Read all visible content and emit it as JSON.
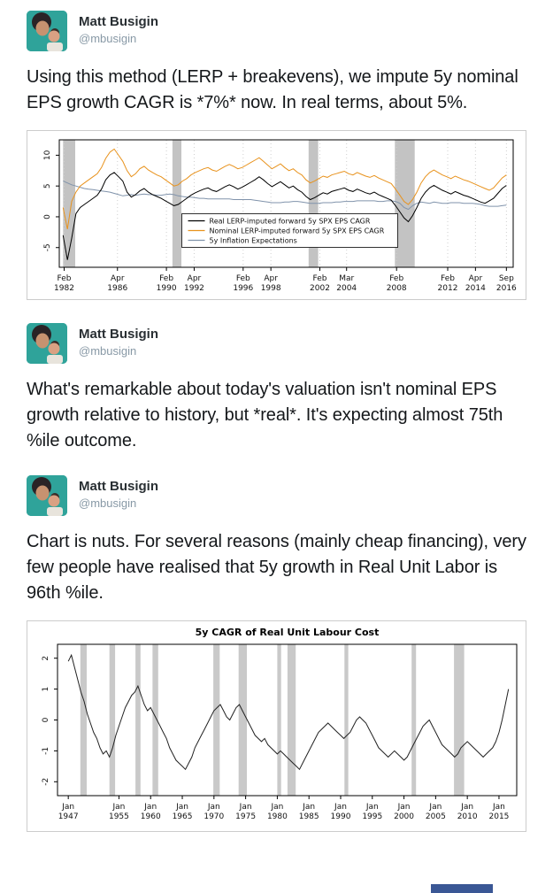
{
  "colors": {
    "text": "#14171a",
    "author_name": "#292f33",
    "handle": "#8899a6",
    "media_border": "#cccccc",
    "cropped_element_blue": "#3a5795"
  },
  "tweets": [
    {
      "author": "Matt Busigin",
      "handle": "@mbusigin",
      "text": "Using this method (LERP + breakevens), we impute 5y nominal EPS growth CAGR is *7%* now. In real terms, about 5%."
    },
    {
      "author": "Matt Busigin",
      "handle": "@mbusigin",
      "text": "What's remarkable about today's valuation isn't nominal EPS growth relative to history, but *real*. It's expecting almost 75th %ile outcome."
    },
    {
      "author": "Matt Busigin",
      "handle": "@mbusigin",
      "text": "Chart is nuts. For several reasons (mainly cheap financing), very few people have realised that 5y growth in Real Unit Labor is 96th %ile."
    }
  ],
  "chart_data": [
    {
      "type": "line",
      "title": "",
      "xlabel": "",
      "ylabel": "",
      "xlim": [
        1981.7,
        2017.2
      ],
      "ylim": [
        -8.2,
        12.5
      ],
      "yticks": [
        -5,
        0,
        5,
        10
      ],
      "xticks": [
        {
          "x": 1982.08,
          "month": "Feb",
          "year": "1982"
        },
        {
          "x": 1986.25,
          "month": "Apr",
          "year": "1986"
        },
        {
          "x": 1990.08,
          "month": "Feb",
          "year": "1990"
        },
        {
          "x": 1992.25,
          "month": "Apr",
          "year": "1992"
        },
        {
          "x": 1996.08,
          "month": "Feb",
          "year": "1996"
        },
        {
          "x": 1998.25,
          "month": "Apr",
          "year": "1998"
        },
        {
          "x": 2002.08,
          "month": "Feb",
          "year": "2002"
        },
        {
          "x": 2004.17,
          "month": "Mar",
          "year": "2004"
        },
        {
          "x": 2008.08,
          "month": "Feb",
          "year": "2008"
        },
        {
          "x": 2012.08,
          "month": "Feb",
          "year": "2012"
        },
        {
          "x": 2014.25,
          "month": "Apr",
          "year": "2014"
        },
        {
          "x": 2016.67,
          "month": "Sep",
          "year": "2016"
        }
      ],
      "grid": true,
      "recession_bands": [
        [
          1982.0,
          1982.95
        ],
        [
          1990.55,
          1991.25
        ],
        [
          2001.2,
          2001.95
        ],
        [
          2007.95,
          2009.5
        ]
      ],
      "band_color": "#c3c3c3",
      "legend": {
        "items": [
          {
            "label": "Real LERP-imputed forward 5y SPX EPS CAGR",
            "color": "#000000"
          },
          {
            "label": "Nominal LERP-imputed forward 5y SPX EPS CAGR",
            "color": "#e8921c"
          },
          {
            "label": "5y Inflation Expectations",
            "color": "#8093ab"
          }
        ]
      },
      "series": [
        {
          "name": "5y Inflation Expectations",
          "color": "#8093ab",
          "x0": 1982.0,
          "dx": 0.33333,
          "values": [
            5.8,
            5.5,
            5.2,
            5.0,
            4.8,
            4.6,
            4.5,
            4.4,
            4.3,
            4.2,
            4.1,
            4.0,
            3.8,
            3.6,
            3.4,
            3.5,
            3.6,
            3.5,
            3.6,
            3.7,
            3.6,
            3.6,
            3.5,
            3.5,
            3.6,
            3.7,
            3.6,
            3.4,
            3.3,
            3.2,
            3.2,
            3.1,
            3.0,
            3.0,
            2.9,
            2.9,
            2.9,
            2.9,
            2.9,
            2.9,
            2.8,
            2.8,
            2.8,
            2.8,
            2.8,
            2.7,
            2.6,
            2.5,
            2.4,
            2.3,
            2.3,
            2.3,
            2.4,
            2.4,
            2.5,
            2.5,
            2.4,
            2.3,
            2.2,
            2.2,
            2.2,
            2.3,
            2.3,
            2.3,
            2.4,
            2.4,
            2.5,
            2.5,
            2.5,
            2.6,
            2.6,
            2.6,
            2.6,
            2.6,
            2.5,
            2.5,
            2.6,
            2.6,
            2.5,
            2.2,
            1.5,
            1.2,
            1.8,
            2.2,
            2.4,
            2.3,
            2.2,
            2.4,
            2.3,
            2.2,
            2.2,
            2.3,
            2.3,
            2.3,
            2.2,
            2.2,
            2.2,
            2.1,
            2.0,
            1.8,
            1.7,
            1.7,
            1.7,
            1.8,
            1.9
          ]
        },
        {
          "name": "Nominal LERP-imputed forward 5y SPX EPS CAGR",
          "color": "#e8921c",
          "x0": 1982.0,
          "dx": 0.33333,
          "values": [
            1.5,
            -2.0,
            2.5,
            4.0,
            5.0,
            5.5,
            6.0,
            6.5,
            7.0,
            8.0,
            9.5,
            10.5,
            11.0,
            10.0,
            9.0,
            7.5,
            6.5,
            7.0,
            7.8,
            8.2,
            7.6,
            7.2,
            6.8,
            6.5,
            6.0,
            5.5,
            5.0,
            5.2,
            5.8,
            6.2,
            6.8,
            7.2,
            7.5,
            7.8,
            8.0,
            7.6,
            7.4,
            7.8,
            8.2,
            8.5,
            8.2,
            7.8,
            8.0,
            8.4,
            8.8,
            9.2,
            9.6,
            9.0,
            8.4,
            7.8,
            8.2,
            8.6,
            8.0,
            7.5,
            7.8,
            7.2,
            6.8,
            6.0,
            5.5,
            5.8,
            6.2,
            6.6,
            6.4,
            6.8,
            7.0,
            7.2,
            7.4,
            7.0,
            6.8,
            7.2,
            6.9,
            6.6,
            6.4,
            6.7,
            6.3,
            6.0,
            5.7,
            5.4,
            4.5,
            3.5,
            2.5,
            2.0,
            2.8,
            4.0,
            5.5,
            6.5,
            7.2,
            7.6,
            7.2,
            6.8,
            6.5,
            6.2,
            6.6,
            6.3,
            6.0,
            5.8,
            5.5,
            5.2,
            4.9,
            4.6,
            4.3,
            4.7,
            5.5,
            6.3,
            6.8
          ]
        },
        {
          "name": "Real LERP-imputed forward 5y SPX EPS CAGR",
          "color": "#000000",
          "x0": 1982.0,
          "dx": 0.33333,
          "values": [
            -3.0,
            -7.0,
            -3.5,
            0.5,
            1.5,
            2.0,
            2.5,
            3.0,
            3.5,
            4.5,
            6.0,
            6.8,
            7.2,
            6.5,
            5.8,
            4.0,
            3.2,
            3.6,
            4.2,
            4.6,
            4.0,
            3.6,
            3.3,
            3.0,
            2.6,
            2.2,
            1.8,
            2.0,
            2.5,
            3.0,
            3.5,
            3.9,
            4.2,
            4.5,
            4.7,
            4.3,
            4.1,
            4.5,
            4.9,
            5.2,
            4.9,
            4.5,
            4.8,
            5.2,
            5.6,
            6.0,
            6.5,
            6.0,
            5.4,
            4.9,
            5.3,
            5.7,
            5.2,
            4.7,
            5.0,
            4.4,
            4.0,
            3.3,
            2.8,
            3.1,
            3.5,
            3.9,
            3.7,
            4.1,
            4.3,
            4.5,
            4.7,
            4.3,
            4.1,
            4.5,
            4.2,
            3.9,
            3.7,
            4.0,
            3.6,
            3.3,
            3.0,
            2.7,
            1.8,
            0.8,
            -0.2,
            -0.8,
            0.2,
            1.5,
            3.0,
            4.0,
            4.7,
            5.1,
            4.7,
            4.3,
            4.0,
            3.7,
            4.1,
            3.8,
            3.5,
            3.3,
            3.0,
            2.7,
            2.4,
            2.2,
            2.6,
            3.0,
            3.8,
            4.6,
            5.1
          ]
        }
      ]
    },
    {
      "type": "line",
      "title": "5y CAGR of Real Unit Labour Cost",
      "xlabel": "",
      "ylabel": "",
      "xlim": [
        1945.3,
        2017.8
      ],
      "ylim": [
        -2.45,
        2.45
      ],
      "yticks": [
        -2,
        -1,
        0,
        1,
        2
      ],
      "xticks": [
        {
          "x": 1947,
          "month": "Jan",
          "year": "1947"
        },
        {
          "x": 1955,
          "month": "Jan",
          "year": "1955"
        },
        {
          "x": 1960,
          "month": "Jan",
          "year": "1960"
        },
        {
          "x": 1965,
          "month": "Jan",
          "year": "1965"
        },
        {
          "x": 1970,
          "month": "Jan",
          "year": "1970"
        },
        {
          "x": 1975,
          "month": "Jan",
          "year": "1975"
        },
        {
          "x": 1980,
          "month": "Jan",
          "year": "1980"
        },
        {
          "x": 1985,
          "month": "Jan",
          "year": "1985"
        },
        {
          "x": 1990,
          "month": "Jan",
          "year": "1990"
        },
        {
          "x": 1995,
          "month": "Jan",
          "year": "1995"
        },
        {
          "x": 2000,
          "month": "Jan",
          "year": "2000"
        },
        {
          "x": 2005,
          "month": "Jan",
          "year": "2005"
        },
        {
          "x": 2010,
          "month": "Jan",
          "year": "2010"
        },
        {
          "x": 2015,
          "month": "Jan",
          "year": "2015"
        }
      ],
      "grid": false,
      "recession_bands": [
        [
          1948.9,
          1949.9
        ],
        [
          1953.5,
          1954.4
        ],
        [
          1957.6,
          1958.4
        ],
        [
          1960.3,
          1961.2
        ],
        [
          1969.9,
          1970.9
        ],
        [
          1973.9,
          1975.2
        ],
        [
          1980.0,
          1980.6
        ],
        [
          1981.6,
          1982.9
        ],
        [
          1990.6,
          1991.2
        ],
        [
          2001.2,
          2001.9
        ],
        [
          2007.9,
          2009.5
        ]
      ],
      "band_color": "#c9c9c9",
      "series": [
        {
          "name": "5y CAGR of Real Unit Labour Cost",
          "color": "#222222",
          "x0": 1947.0,
          "dx": 0.5,
          "values": [
            1.9,
            2.1,
            1.7,
            1.3,
            0.9,
            0.6,
            0.2,
            -0.1,
            -0.4,
            -0.6,
            -0.9,
            -1.1,
            -1.0,
            -1.2,
            -0.9,
            -0.5,
            -0.2,
            0.1,
            0.4,
            0.6,
            0.8,
            0.9,
            1.1,
            0.8,
            0.5,
            0.3,
            0.4,
            0.2,
            0.0,
            -0.2,
            -0.4,
            -0.6,
            -0.9,
            -1.1,
            -1.3,
            -1.4,
            -1.5,
            -1.6,
            -1.4,
            -1.2,
            -0.9,
            -0.7,
            -0.5,
            -0.3,
            -0.1,
            0.1,
            0.3,
            0.4,
            0.5,
            0.3,
            0.1,
            0.0,
            0.2,
            0.4,
            0.5,
            0.3,
            0.1,
            -0.1,
            -0.3,
            -0.5,
            -0.6,
            -0.7,
            -0.6,
            -0.8,
            -0.9,
            -1.0,
            -1.1,
            -1.0,
            -1.1,
            -1.2,
            -1.3,
            -1.4,
            -1.5,
            -1.6,
            -1.4,
            -1.2,
            -1.0,
            -0.8,
            -0.6,
            -0.4,
            -0.3,
            -0.2,
            -0.1,
            -0.2,
            -0.3,
            -0.4,
            -0.5,
            -0.6,
            -0.5,
            -0.4,
            -0.2,
            0.0,
            0.1,
            0.0,
            -0.1,
            -0.3,
            -0.5,
            -0.7,
            -0.9,
            -1.0,
            -1.1,
            -1.2,
            -1.1,
            -1.0,
            -1.1,
            -1.2,
            -1.3,
            -1.2,
            -1.0,
            -0.8,
            -0.6,
            -0.4,
            -0.2,
            -0.1,
            0.0,
            -0.2,
            -0.4,
            -0.6,
            -0.8,
            -0.9,
            -1.0,
            -1.1,
            -1.2,
            -1.1,
            -0.9,
            -0.8,
            -0.7,
            -0.8,
            -0.9,
            -1.0,
            -1.1,
            -1.2,
            -1.1,
            -1.0,
            -0.9,
            -0.7,
            -0.4,
            0.0,
            0.5,
            1.0
          ]
        }
      ]
    }
  ]
}
